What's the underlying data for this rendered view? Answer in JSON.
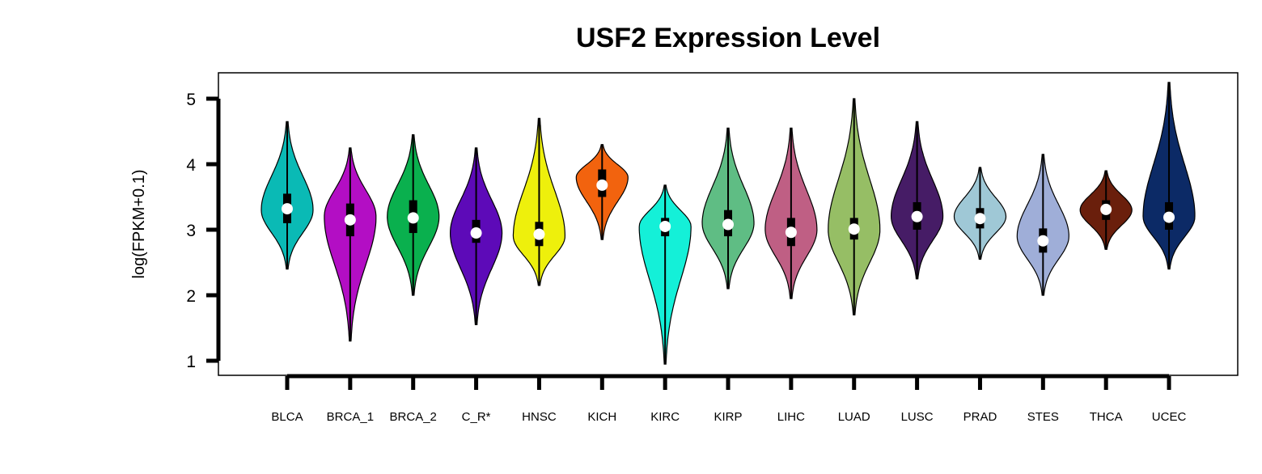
{
  "chart_data": {
    "type": "violin",
    "title": "USF2 Expression Level",
    "ylabel": "log(FPKM+0.1)",
    "xlabel": "",
    "ylim": [
      0.8,
      5.4
    ],
    "yticks": [
      1,
      2,
      3,
      4,
      5
    ],
    "grid": false,
    "legend": "none",
    "series": [
      {
        "category": "BLCA",
        "color": "#0ABAB5",
        "min": 2.4,
        "q1": 3.1,
        "median": 3.32,
        "q3": 3.55,
        "max": 4.65,
        "density_peak": 3.3
      },
      {
        "category": "BRCA_1",
        "color": "#B30EC4",
        "min": 1.3,
        "q1": 2.9,
        "median": 3.15,
        "q3": 3.4,
        "max": 4.25,
        "density_peak": 3.2
      },
      {
        "category": "BRCA_2",
        "color": "#0AB04E",
        "min": 2.0,
        "q1": 2.95,
        "median": 3.18,
        "q3": 3.45,
        "max": 4.45,
        "density_peak": 3.2
      },
      {
        "category": "C_R*",
        "color": "#5D0AB8",
        "min": 1.55,
        "q1": 2.8,
        "median": 2.95,
        "q3": 3.15,
        "max": 4.25,
        "density_peak": 2.95
      },
      {
        "category": "HNSC",
        "color": "#EEF00C",
        "min": 2.15,
        "q1": 2.75,
        "median": 2.93,
        "q3": 3.12,
        "max": 4.7,
        "density_peak": 2.9
      },
      {
        "category": "KICH",
        "color": "#F2630E",
        "min": 2.85,
        "q1": 3.5,
        "median": 3.68,
        "q3": 3.92,
        "max": 4.3,
        "density_peak": 3.8
      },
      {
        "category": "KIRC",
        "color": "#14F0D8",
        "min": 0.95,
        "q1": 2.9,
        "median": 3.05,
        "q3": 3.18,
        "max": 3.68,
        "density_peak": 3.05
      },
      {
        "category": "KIRP",
        "color": "#5FBD84",
        "min": 2.1,
        "q1": 2.9,
        "median": 3.08,
        "q3": 3.3,
        "max": 4.55,
        "density_peak": 3.1
      },
      {
        "category": "LIHC",
        "color": "#BF5F84",
        "min": 1.95,
        "q1": 2.75,
        "median": 2.96,
        "q3": 3.18,
        "max": 4.55,
        "density_peak": 3.0
      },
      {
        "category": "LUAD",
        "color": "#96BE65",
        "min": 1.7,
        "q1": 2.85,
        "median": 3.01,
        "q3": 3.18,
        "max": 5.0,
        "density_peak": 3.0
      },
      {
        "category": "LUSC",
        "color": "#461C66",
        "min": 2.25,
        "q1": 3.0,
        "median": 3.2,
        "q3": 3.42,
        "max": 4.65,
        "density_peak": 3.2
      },
      {
        "category": "PRAD",
        "color": "#9FC8D6",
        "min": 2.55,
        "q1": 3.02,
        "median": 3.17,
        "q3": 3.33,
        "max": 3.95,
        "density_peak": 3.2
      },
      {
        "category": "STES",
        "color": "#9FAED8",
        "min": 2.0,
        "q1": 2.65,
        "median": 2.83,
        "q3": 3.02,
        "max": 4.15,
        "density_peak": 2.9
      },
      {
        "category": "THCA",
        "color": "#6A1F0C",
        "min": 2.7,
        "q1": 3.15,
        "median": 3.31,
        "q3": 3.45,
        "max": 3.9,
        "density_peak": 3.3
      },
      {
        "category": "UCEC",
        "color": "#0C2A66",
        "min": 2.4,
        "q1": 3.0,
        "median": 3.19,
        "q3": 3.42,
        "max": 5.25,
        "density_peak": 3.2
      }
    ]
  }
}
